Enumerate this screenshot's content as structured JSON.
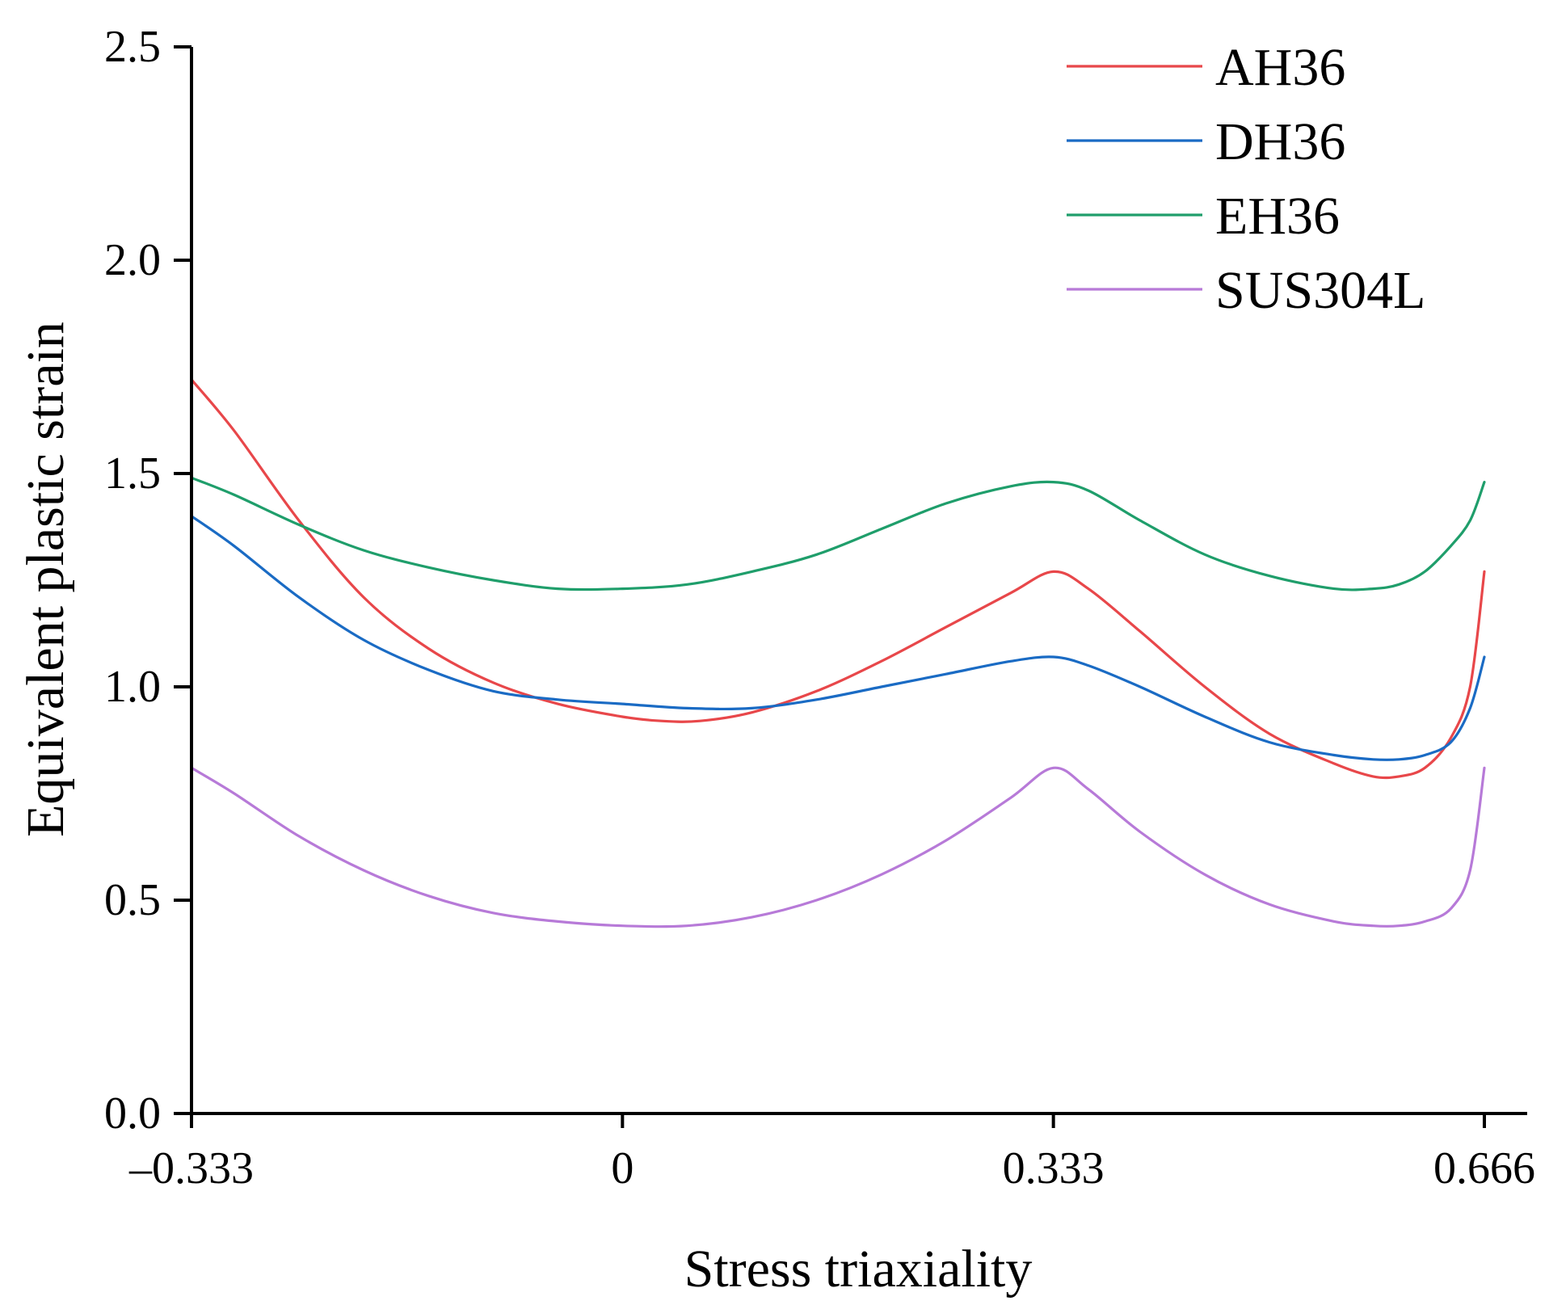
{
  "chart_data": {
    "type": "line",
    "title": "",
    "xlabel": "Stress triaxiality",
    "ylabel": "Equivalent plastic strain",
    "xlim": [
      -0.333,
      0.666
    ],
    "ylim": [
      0.0,
      2.5
    ],
    "x_ticks": [
      {
        "value": -0.333,
        "label": "–0.333"
      },
      {
        "value": 0.0,
        "label": "0"
      },
      {
        "value": 0.333,
        "label": "0.333"
      },
      {
        "value": 0.666,
        "label": "0.666"
      }
    ],
    "y_ticks": [
      {
        "value": 0.0,
        "label": "0.0"
      },
      {
        "value": 0.5,
        "label": "0.5"
      },
      {
        "value": 1.0,
        "label": "1.0"
      },
      {
        "value": 1.5,
        "label": "1.5"
      },
      {
        "value": 2.0,
        "label": "2.0"
      },
      {
        "value": 2.5,
        "label": "2.5"
      }
    ],
    "grid": false,
    "legend_position": "top-right",
    "series": [
      {
        "name": "AH36",
        "color": "#e8474a",
        "x": [
          -0.333,
          -0.3,
          -0.25,
          -0.2,
          -0.15,
          -0.1,
          -0.05,
          0.0,
          0.03,
          0.06,
          0.1,
          0.15,
          0.2,
          0.25,
          0.3,
          0.333,
          0.36,
          0.4,
          0.45,
          0.5,
          0.55,
          0.58,
          0.6,
          0.62,
          0.64,
          0.655,
          0.666
        ],
        "y": [
          1.72,
          1.6,
          1.39,
          1.21,
          1.09,
          1.01,
          0.96,
          0.93,
          0.92,
          0.92,
          0.94,
          0.99,
          1.06,
          1.14,
          1.22,
          1.27,
          1.23,
          1.13,
          1.0,
          0.89,
          0.82,
          0.79,
          0.79,
          0.81,
          0.88,
          1.0,
          1.27
        ]
      },
      {
        "name": "DH36",
        "color": "#1a6bc4",
        "x": [
          -0.333,
          -0.3,
          -0.25,
          -0.2,
          -0.15,
          -0.1,
          -0.05,
          0.0,
          0.05,
          0.1,
          0.15,
          0.2,
          0.25,
          0.3,
          0.333,
          0.36,
          0.4,
          0.45,
          0.5,
          0.55,
          0.58,
          0.6,
          0.62,
          0.64,
          0.655,
          0.666
        ],
        "y": [
          1.4,
          1.33,
          1.21,
          1.11,
          1.04,
          0.99,
          0.97,
          0.96,
          0.95,
          0.95,
          0.97,
          1.0,
          1.03,
          1.06,
          1.07,
          1.05,
          1.0,
          0.93,
          0.87,
          0.84,
          0.83,
          0.83,
          0.84,
          0.87,
          0.95,
          1.07
        ]
      },
      {
        "name": "EH36",
        "color": "#1f9e6b",
        "x": [
          -0.333,
          -0.3,
          -0.25,
          -0.2,
          -0.15,
          -0.1,
          -0.05,
          0.0,
          0.05,
          0.1,
          0.15,
          0.2,
          0.25,
          0.3,
          0.333,
          0.36,
          0.4,
          0.45,
          0.5,
          0.55,
          0.58,
          0.6,
          0.62,
          0.64,
          0.655,
          0.666
        ],
        "y": [
          1.49,
          1.45,
          1.38,
          1.32,
          1.28,
          1.25,
          1.23,
          1.23,
          1.24,
          1.27,
          1.31,
          1.37,
          1.43,
          1.47,
          1.48,
          1.46,
          1.39,
          1.31,
          1.26,
          1.23,
          1.23,
          1.24,
          1.27,
          1.33,
          1.39,
          1.48
        ]
      },
      {
        "name": "SUS304L",
        "color": "#b77ad8",
        "x": [
          -0.333,
          -0.3,
          -0.25,
          -0.2,
          -0.15,
          -0.1,
          -0.05,
          0.0,
          0.05,
          0.1,
          0.15,
          0.2,
          0.25,
          0.3,
          0.333,
          0.36,
          0.4,
          0.45,
          0.5,
          0.55,
          0.58,
          0.6,
          0.62,
          0.64,
          0.655,
          0.666
        ],
        "y": [
          0.81,
          0.75,
          0.65,
          0.57,
          0.51,
          0.47,
          0.45,
          0.44,
          0.44,
          0.46,
          0.5,
          0.56,
          0.64,
          0.74,
          0.81,
          0.76,
          0.66,
          0.56,
          0.49,
          0.45,
          0.44,
          0.44,
          0.45,
          0.48,
          0.57,
          0.81
        ]
      }
    ]
  }
}
